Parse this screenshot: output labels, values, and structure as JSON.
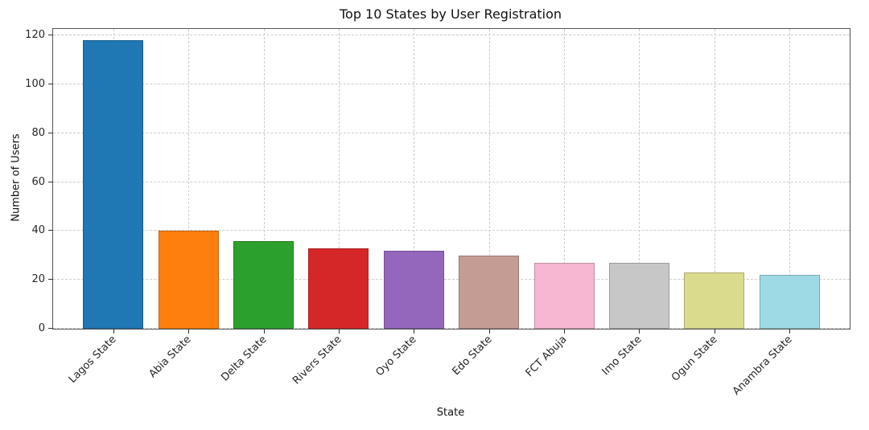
{
  "chart_data": {
    "type": "bar",
    "title": "Top 10 States by User Registration",
    "xlabel": "State",
    "ylabel": "Number of Users",
    "categories": [
      "Lagos State",
      "Abia State",
      "Delta State",
      "Rivers State",
      "Oyo State",
      "Edo State",
      "FCT Abuja",
      "Imo State",
      "Ogun State",
      "Anambra State"
    ],
    "values": [
      118,
      40,
      36,
      33,
      32,
      30,
      27,
      27,
      23,
      22
    ],
    "colors": [
      "#1f77b4",
      "#ff7f0e",
      "#2ca02c",
      "#d62728",
      "#9467bd",
      "#c49c94",
      "#f7b6d2",
      "#c7c7c7",
      "#dbdb8d",
      "#9edae5"
    ],
    "ylim": [
      0,
      120
    ],
    "yticks": [
      0,
      20,
      40,
      60,
      80,
      100,
      120
    ],
    "grid": "dashed",
    "legend": "none",
    "bar_width_fraction": 0.8,
    "x_tick_rotation_deg": 45
  }
}
